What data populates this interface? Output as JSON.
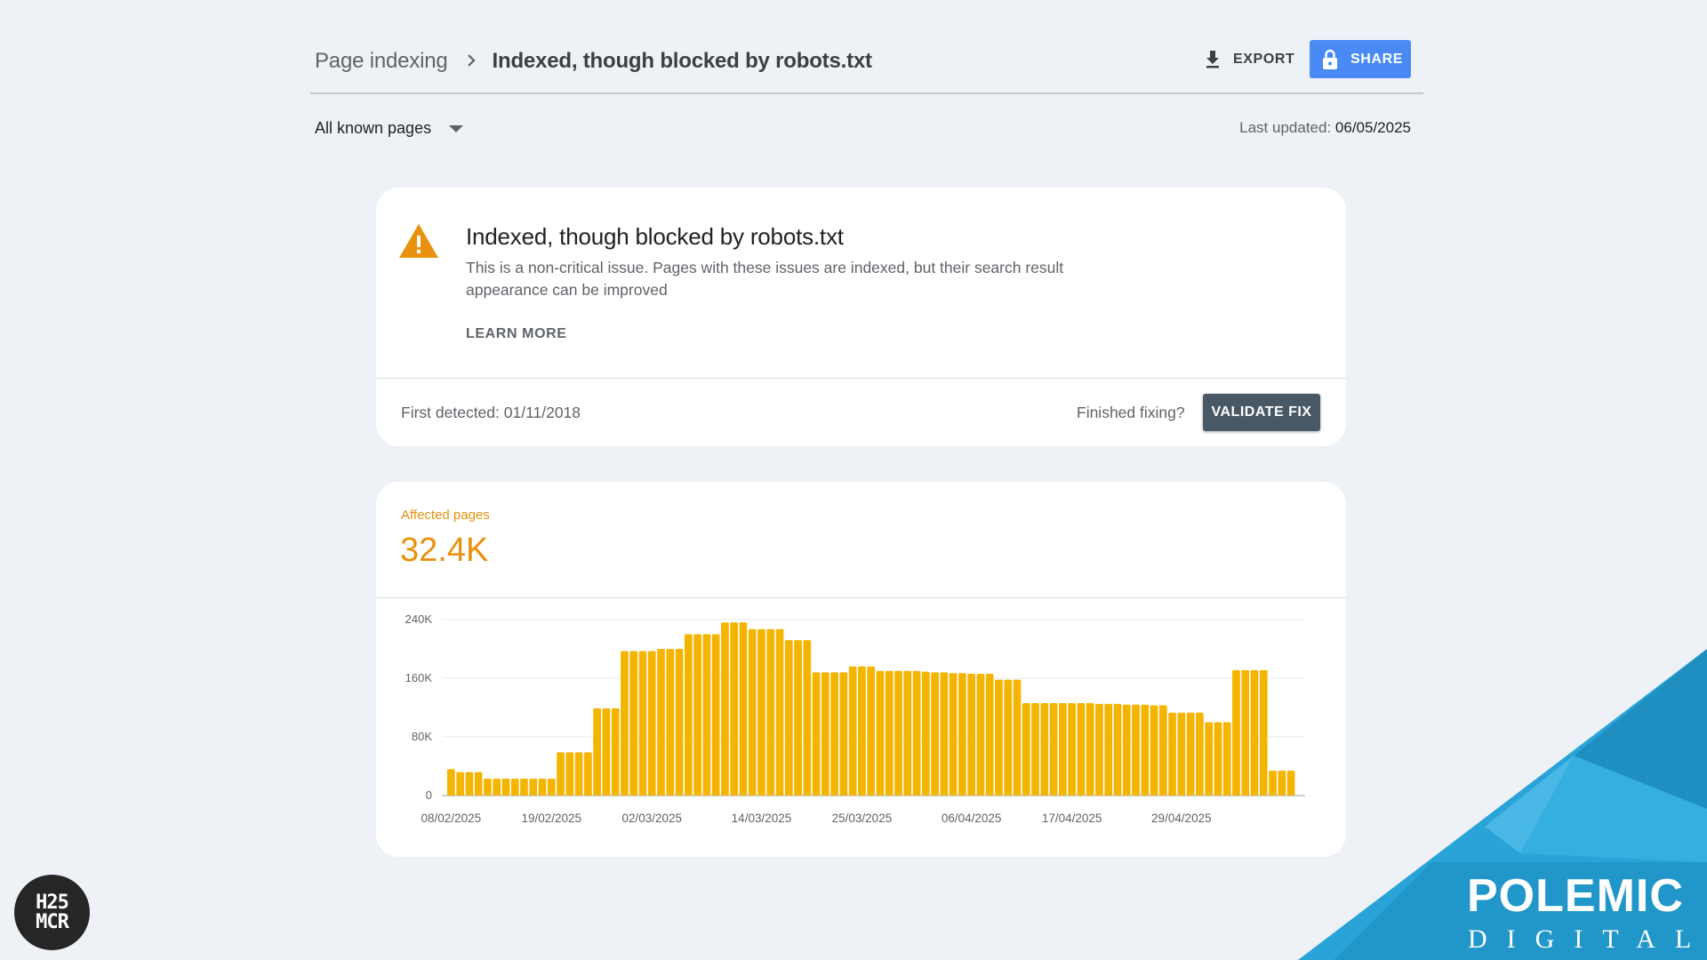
{
  "header": {
    "breadcrumb_parent": "Page indexing",
    "breadcrumb_current": "Indexed, though blocked by robots.txt",
    "export_label": "EXPORT",
    "share_label": "SHARE"
  },
  "filter": {
    "selected": "All known pages",
    "last_updated_label": "Last updated:",
    "last_updated_date": "06/05/2025"
  },
  "issue": {
    "title": "Indexed, though blocked by robots.txt",
    "description": "This is a non-critical issue. Pages with these issues are indexed, but their search result appearance can be improved",
    "learn_more": "LEARN MORE",
    "first_detected": "First detected: 01/11/2018",
    "finished_fixing": "Finished fixing?",
    "validate_label": "VALIDATE FIX",
    "icon": "warning-icon"
  },
  "affected": {
    "label": "Affected pages",
    "value": "32.4K"
  },
  "chart_data": {
    "type": "bar",
    "color": "#f4b400",
    "ylim": [
      0,
      240000
    ],
    "yticks": [
      0,
      80000,
      160000,
      240000
    ],
    "ytick_labels": [
      "0",
      "80K",
      "160K",
      "240K"
    ],
    "xtick_labels": [
      "08/02/2025",
      "19/02/2025",
      "02/03/2025",
      "14/03/2025",
      "25/03/2025",
      "06/04/2025",
      "17/04/2025",
      "29/04/2025"
    ],
    "xtick_indices": [
      0,
      11,
      22,
      34,
      45,
      57,
      68,
      80
    ],
    "grid": true,
    "values": [
      36000,
      32000,
      32000,
      32000,
      23000,
      23000,
      23000,
      23000,
      23000,
      23000,
      23000,
      23000,
      59000,
      59000,
      59000,
      59000,
      119000,
      119000,
      119000,
      197000,
      197000,
      197000,
      197000,
      200000,
      200000,
      200000,
      220000,
      220000,
      220000,
      220000,
      236000,
      236000,
      236000,
      227000,
      227000,
      227000,
      227000,
      212000,
      212000,
      212000,
      168000,
      168000,
      168000,
      168000,
      176000,
      176000,
      176000,
      170000,
      170000,
      170000,
      170000,
      170000,
      169000,
      168000,
      168000,
      167000,
      167000,
      166000,
      166000,
      166000,
      158000,
      158000,
      158000,
      126000,
      126000,
      126000,
      126000,
      126000,
      126000,
      126000,
      126000,
      125000,
      125000,
      125000,
      124000,
      124000,
      124000,
      123000,
      123000,
      113000,
      113000,
      113000,
      113000,
      100000,
      100000,
      100000,
      171000,
      171000,
      171000,
      171000,
      34000,
      34000,
      34000
    ]
  },
  "logos": {
    "left_logo_line1": "H25",
    "left_logo_line2": "MCR",
    "brand_name": "POLEMIC",
    "brand_sub": "DIGITAL"
  }
}
